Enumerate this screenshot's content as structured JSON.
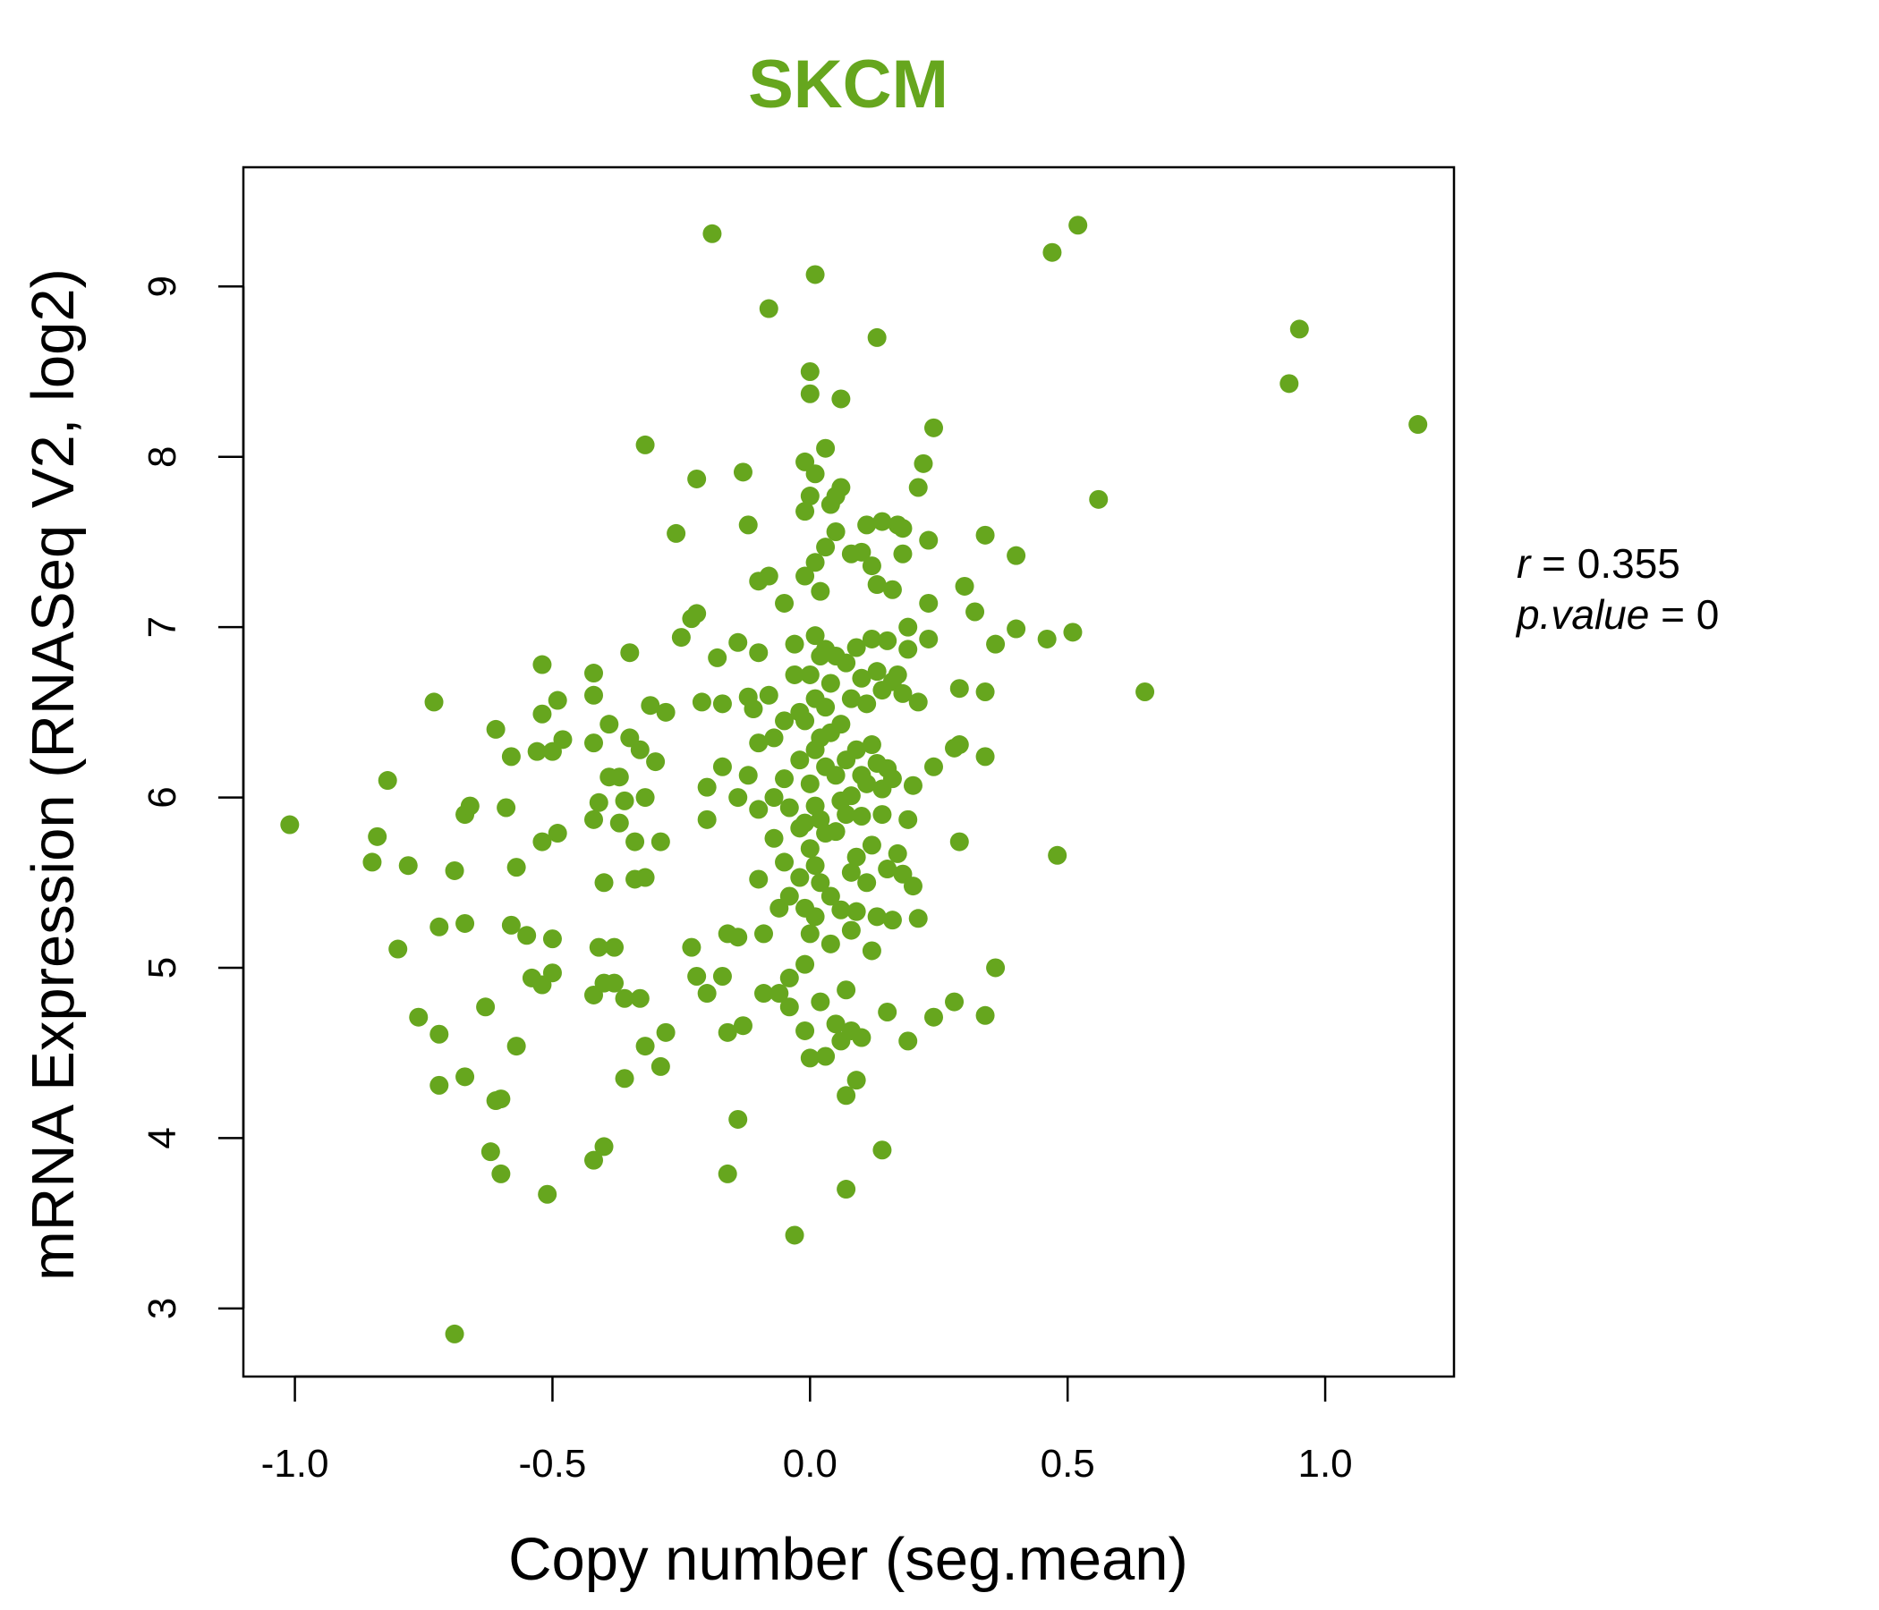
{
  "chart_data": {
    "type": "scatter",
    "title": "SKCM",
    "xlabel": "Copy number (seg.mean)",
    "ylabel": "mRNA Expression (RNASeq V2, log2)",
    "xlim": [
      -1.1,
      1.25
    ],
    "ylim": [
      2.6,
      9.7
    ],
    "xticks": [
      -1.0,
      -0.5,
      0.0,
      0.5,
      1.0
    ],
    "xtick_labels": [
      "-1.0",
      "-0.5",
      "0.0",
      "0.5",
      "1.0"
    ],
    "yticks": [
      3,
      4,
      5,
      6,
      7,
      8,
      9
    ],
    "ytick_labels": [
      "3",
      "4",
      "5",
      "6",
      "7",
      "8",
      "9"
    ],
    "grid": false,
    "colors": {
      "points": "#66a61e",
      "title": "#66a61e",
      "axis": "#000000"
    },
    "annotation": {
      "r_symbol": "r",
      "r_eq": " = ",
      "r_value": "0.355",
      "p_symbol": "p.value",
      "p_eq": " = ",
      "p_value": "0"
    },
    "points": [
      [
        -1.01,
        5.84
      ],
      [
        -0.84,
        5.77
      ],
      [
        -0.85,
        5.62
      ],
      [
        -0.82,
        6.1
      ],
      [
        -0.78,
        5.6
      ],
      [
        -0.8,
        5.11
      ],
      [
        -0.73,
        6.56
      ],
      [
        -0.72,
        5.24
      ],
      [
        -0.76,
        4.71
      ],
      [
        -0.72,
        4.61
      ],
      [
        -0.72,
        4.31
      ],
      [
        -0.69,
        5.57
      ],
      [
        -0.67,
        5.9
      ],
      [
        -0.66,
        5.95
      ],
      [
        -0.67,
        5.26
      ],
      [
        -0.63,
        4.77
      ],
      [
        -0.67,
        4.36
      ],
      [
        -0.61,
        6.4
      ],
      [
        -0.61,
        4.22
      ],
      [
        -0.6,
        4.23
      ],
      [
        -0.62,
        3.92
      ],
      [
        -0.6,
        3.79
      ],
      [
        -0.69,
        2.85
      ],
      [
        -0.58,
        6.24
      ],
      [
        -0.59,
        5.94
      ],
      [
        -0.57,
        5.59
      ],
      [
        -0.58,
        5.25
      ],
      [
        -0.57,
        4.54
      ],
      [
        -0.55,
        5.19
      ],
      [
        -0.54,
        4.94
      ],
      [
        -0.53,
        6.27
      ],
      [
        -0.52,
        5.74
      ],
      [
        -0.52,
        6.49
      ],
      [
        -0.5,
        6.27
      ],
      [
        -0.52,
        4.9
      ],
      [
        -0.5,
        5.17
      ],
      [
        -0.5,
        4.97
      ],
      [
        -0.49,
        6.57
      ],
      [
        -0.49,
        5.79
      ],
      [
        -0.48,
        6.34
      ],
      [
        -0.52,
        6.78
      ],
      [
        -0.51,
        3.67
      ],
      [
        -0.42,
        6.73
      ],
      [
        -0.42,
        6.6
      ],
      [
        -0.42,
        6.32
      ],
      [
        -0.42,
        5.87
      ],
      [
        -0.42,
        4.84
      ],
      [
        -0.41,
        5.12
      ],
      [
        -0.4,
        4.91
      ],
      [
        -0.4,
        5.5
      ],
      [
        -0.41,
        5.97
      ],
      [
        -0.39,
        6.43
      ],
      [
        -0.39,
        6.12
      ],
      [
        -0.38,
        5.12
      ],
      [
        -0.38,
        4.91
      ],
      [
        -0.37,
        6.12
      ],
      [
        -0.37,
        5.85
      ],
      [
        -0.36,
        4.35
      ],
      [
        -0.4,
        3.95
      ],
      [
        -0.42,
        3.87
      ],
      [
        -0.36,
        5.98
      ],
      [
        -0.35,
        6.35
      ],
      [
        -0.34,
        5.74
      ],
      [
        -0.34,
        5.52
      ],
      [
        -0.33,
        6.28
      ],
      [
        -0.32,
        6.0
      ],
      [
        -0.32,
        5.53
      ],
      [
        -0.31,
        6.54
      ],
      [
        -0.3,
        6.21
      ],
      [
        -0.29,
        5.74
      ],
      [
        -0.28,
        6.5
      ],
      [
        -0.29,
        4.42
      ],
      [
        -0.28,
        4.62
      ],
      [
        -0.35,
        6.85
      ],
      [
        -0.36,
        4.82
      ],
      [
        -0.33,
        4.82
      ],
      [
        -0.32,
        4.54
      ],
      [
        -0.32,
        8.07
      ],
      [
        -0.26,
        7.55
      ],
      [
        -0.25,
        6.94
      ],
      [
        -0.23,
        7.05
      ],
      [
        -0.22,
        7.87
      ],
      [
        -0.22,
        7.08
      ],
      [
        -0.23,
        5.12
      ],
      [
        -0.22,
        4.95
      ],
      [
        -0.21,
        6.56
      ],
      [
        -0.2,
        6.06
      ],
      [
        -0.2,
        5.87
      ],
      [
        -0.2,
        4.85
      ],
      [
        -0.19,
        9.31
      ],
      [
        -0.18,
        6.82
      ],
      [
        -0.17,
        6.55
      ],
      [
        -0.17,
        6.18
      ],
      [
        -0.17,
        4.95
      ],
      [
        -0.16,
        5.2
      ],
      [
        -0.16,
        4.62
      ],
      [
        -0.16,
        3.79
      ],
      [
        -0.14,
        6.91
      ],
      [
        -0.14,
        6.0
      ],
      [
        -0.14,
        5.18
      ],
      [
        -0.13,
        4.66
      ],
      [
        -0.14,
        4.11
      ],
      [
        -0.13,
        7.91
      ],
      [
        -0.12,
        7.6
      ],
      [
        -0.12,
        6.59
      ],
      [
        -0.12,
        6.13
      ],
      [
        -0.11,
        6.52
      ],
      [
        -0.1,
        7.27
      ],
      [
        -0.1,
        6.85
      ],
      [
        -0.1,
        6.32
      ],
      [
        -0.1,
        5.93
      ],
      [
        -0.1,
        5.52
      ],
      [
        -0.09,
        5.2
      ],
      [
        -0.09,
        4.85
      ],
      [
        -0.08,
        8.87
      ],
      [
        -0.08,
        7.3
      ],
      [
        -0.08,
        6.6
      ],
      [
        -0.07,
        6.35
      ],
      [
        -0.07,
        6.0
      ],
      [
        -0.07,
        5.76
      ],
      [
        -0.06,
        5.35
      ],
      [
        -0.06,
        4.85
      ],
      [
        -0.05,
        7.14
      ],
      [
        -0.05,
        6.45
      ],
      [
        -0.05,
        6.11
      ],
      [
        -0.05,
        5.62
      ],
      [
        -0.04,
        5.94
      ],
      [
        -0.04,
        5.42
      ],
      [
        -0.04,
        4.94
      ],
      [
        -0.04,
        4.77
      ],
      [
        -0.03,
        3.43
      ],
      [
        -0.03,
        6.9
      ],
      [
        -0.03,
        6.72
      ],
      [
        -0.02,
        6.5
      ],
      [
        -0.02,
        6.22
      ],
      [
        -0.02,
        5.82
      ],
      [
        -0.02,
        5.53
      ],
      [
        -0.01,
        7.97
      ],
      [
        -0.01,
        7.68
      ],
      [
        -0.01,
        7.3
      ],
      [
        -0.01,
        6.45
      ],
      [
        -0.01,
        5.85
      ],
      [
        -0.01,
        5.35
      ],
      [
        -0.01,
        5.02
      ],
      [
        -0.01,
        4.63
      ],
      [
        0.0,
        8.37
      ],
      [
        0.0,
        7.77
      ],
      [
        0.0,
        6.72
      ],
      [
        0.0,
        6.08
      ],
      [
        0.0,
        5.7
      ],
      [
        0.0,
        5.2
      ],
      [
        0.0,
        4.47
      ],
      [
        0.0,
        8.5
      ],
      [
        0.01,
        9.07
      ],
      [
        0.01,
        7.9
      ],
      [
        0.01,
        7.38
      ],
      [
        0.01,
        6.95
      ],
      [
        0.01,
        6.58
      ],
      [
        0.01,
        6.28
      ],
      [
        0.01,
        5.95
      ],
      [
        0.01,
        5.6
      ],
      [
        0.01,
        5.3
      ],
      [
        0.02,
        4.8
      ],
      [
        0.02,
        7.21
      ],
      [
        0.02,
        6.83
      ],
      [
        0.02,
        6.35
      ],
      [
        0.02,
        5.87
      ],
      [
        0.02,
        5.5
      ],
      [
        0.03,
        8.05
      ],
      [
        0.03,
        7.47
      ],
      [
        0.03,
        6.87
      ],
      [
        0.03,
        6.53
      ],
      [
        0.03,
        6.18
      ],
      [
        0.03,
        5.79
      ],
      [
        0.03,
        4.48
      ],
      [
        0.04,
        7.72
      ],
      [
        0.04,
        6.67
      ],
      [
        0.04,
        6.38
      ],
      [
        0.04,
        5.42
      ],
      [
        0.04,
        5.14
      ],
      [
        0.05,
        7.77
      ],
      [
        0.05,
        7.56
      ],
      [
        0.05,
        6.83
      ],
      [
        0.05,
        6.13
      ],
      [
        0.05,
        5.8
      ],
      [
        0.05,
        4.67
      ],
      [
        0.06,
        8.34
      ],
      [
        0.06,
        7.82
      ],
      [
        0.06,
        6.43
      ],
      [
        0.06,
        5.98
      ],
      [
        0.06,
        5.34
      ],
      [
        0.06,
        4.57
      ],
      [
        0.07,
        6.79
      ],
      [
        0.07,
        6.22
      ],
      [
        0.07,
        5.9
      ],
      [
        0.07,
        4.87
      ],
      [
        0.07,
        3.7
      ],
      [
        0.07,
        4.25
      ],
      [
        0.08,
        7.43
      ],
      [
        0.08,
        6.58
      ],
      [
        0.08,
        6.01
      ],
      [
        0.08,
        5.56
      ],
      [
        0.08,
        5.22
      ],
      [
        0.08,
        4.63
      ],
      [
        0.09,
        6.88
      ],
      [
        0.09,
        6.28
      ],
      [
        0.09,
        5.65
      ],
      [
        0.09,
        5.33
      ],
      [
        0.09,
        4.34
      ],
      [
        0.1,
        7.44
      ],
      [
        0.1,
        6.7
      ],
      [
        0.1,
        6.13
      ],
      [
        0.1,
        5.89
      ],
      [
        0.1,
        4.59
      ],
      [
        0.11,
        7.6
      ],
      [
        0.11,
        6.55
      ],
      [
        0.11,
        6.08
      ],
      [
        0.11,
        5.5
      ],
      [
        0.12,
        7.36
      ],
      [
        0.12,
        6.93
      ],
      [
        0.12,
        6.31
      ],
      [
        0.12,
        5.72
      ],
      [
        0.12,
        5.1
      ],
      [
        0.13,
        8.7
      ],
      [
        0.13,
        7.25
      ],
      [
        0.13,
        6.74
      ],
      [
        0.13,
        6.2
      ],
      [
        0.13,
        5.3
      ],
      [
        0.14,
        7.62
      ],
      [
        0.14,
        6.63
      ],
      [
        0.14,
        6.05
      ],
      [
        0.14,
        5.9
      ],
      [
        0.14,
        3.93
      ],
      [
        0.15,
        6.92
      ],
      [
        0.15,
        6.17
      ],
      [
        0.15,
        5.58
      ],
      [
        0.15,
        4.74
      ],
      [
        0.16,
        7.22
      ],
      [
        0.16,
        6.68
      ],
      [
        0.16,
        6.11
      ],
      [
        0.16,
        5.28
      ],
      [
        0.17,
        7.6
      ],
      [
        0.17,
        6.72
      ],
      [
        0.17,
        5.67
      ],
      [
        0.18,
        7.58
      ],
      [
        0.18,
        7.43
      ],
      [
        0.18,
        6.61
      ],
      [
        0.18,
        5.55
      ],
      [
        0.19,
        7.0
      ],
      [
        0.19,
        6.87
      ],
      [
        0.19,
        5.87
      ],
      [
        0.19,
        4.57
      ],
      [
        0.2,
        6.07
      ],
      [
        0.2,
        5.48
      ],
      [
        0.21,
        7.82
      ],
      [
        0.21,
        6.56
      ],
      [
        0.21,
        5.29
      ],
      [
        0.22,
        7.96
      ],
      [
        0.23,
        7.51
      ],
      [
        0.23,
        6.93
      ],
      [
        0.23,
        7.14
      ],
      [
        0.24,
        8.17
      ],
      [
        0.24,
        6.18
      ],
      [
        0.24,
        4.71
      ],
      [
        0.28,
        6.29
      ],
      [
        0.29,
        6.64
      ],
      [
        0.29,
        6.31
      ],
      [
        0.29,
        5.74
      ],
      [
        0.28,
        4.8
      ],
      [
        0.3,
        7.24
      ],
      [
        0.32,
        7.09
      ],
      [
        0.34,
        7.54
      ],
      [
        0.34,
        6.62
      ],
      [
        0.34,
        6.24
      ],
      [
        0.34,
        4.72
      ],
      [
        0.36,
        6.9
      ],
      [
        0.36,
        5.0
      ],
      [
        0.4,
        7.42
      ],
      [
        0.4,
        6.99
      ],
      [
        0.46,
        6.93
      ],
      [
        0.47,
        9.2
      ],
      [
        0.48,
        5.66
      ],
      [
        0.51,
        6.97
      ],
      [
        0.52,
        9.36
      ],
      [
        0.56,
        7.75
      ],
      [
        0.65,
        6.62
      ],
      [
        0.93,
        8.43
      ],
      [
        0.95,
        8.75
      ],
      [
        1.18,
        8.19
      ]
    ]
  }
}
